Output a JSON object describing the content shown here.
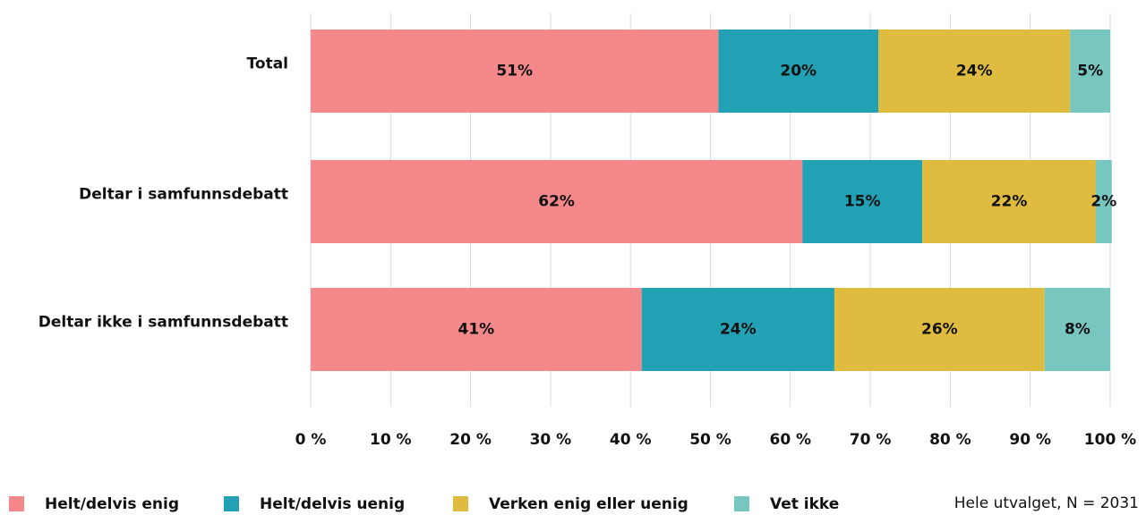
{
  "chart_data": {
    "type": "stacked_bar_horizontal",
    "categories": [
      "Total",
      "Deltar i samfunnsdebatt",
      "Deltar ikke i samfunnsdebatt"
    ],
    "series": [
      {
        "name": "Helt/delvis enig",
        "color": "#f4888a",
        "values": [
          51,
          61.5,
          41.4
        ],
        "value_labels": [
          "51%",
          "62%",
          "41%"
        ]
      },
      {
        "name": "Helt/delvis uenig",
        "color": "#22a0b4",
        "values": [
          20,
          15,
          24.1
        ],
        "value_labels": [
          "20%",
          "15%",
          "24%"
        ]
      },
      {
        "name": "Verken enig eller uenig",
        "color": "#dfbb3f",
        "values": [
          24,
          21.7,
          26.3
        ],
        "value_labels": [
          "24%",
          "22%",
          "26%"
        ]
      },
      {
        "name": "Vet ikke",
        "color": "#77c6c0",
        "values": [
          5,
          2,
          8.2
        ],
        "value_labels": [
          "5%",
          "2%",
          "8%"
        ]
      }
    ],
    "xlim": [
      0,
      100
    ],
    "xticks": [
      {
        "value": 0,
        "label": "0 %"
      },
      {
        "value": 10,
        "label": "10 %"
      },
      {
        "value": 20,
        "label": "20 %"
      },
      {
        "value": 30,
        "label": "30 %"
      },
      {
        "value": 40,
        "label": "40 %"
      },
      {
        "value": 50,
        "label": "50 %"
      },
      {
        "value": 60,
        "label": "60 %"
      },
      {
        "value": 70,
        "label": "70 %"
      },
      {
        "value": 80,
        "label": "80 %"
      },
      {
        "value": 90,
        "label": "90 %"
      },
      {
        "value": 100,
        "label": "100 %"
      }
    ],
    "grid": true,
    "legend": "bottom",
    "note": "Hele utvalget, N = 2031"
  }
}
